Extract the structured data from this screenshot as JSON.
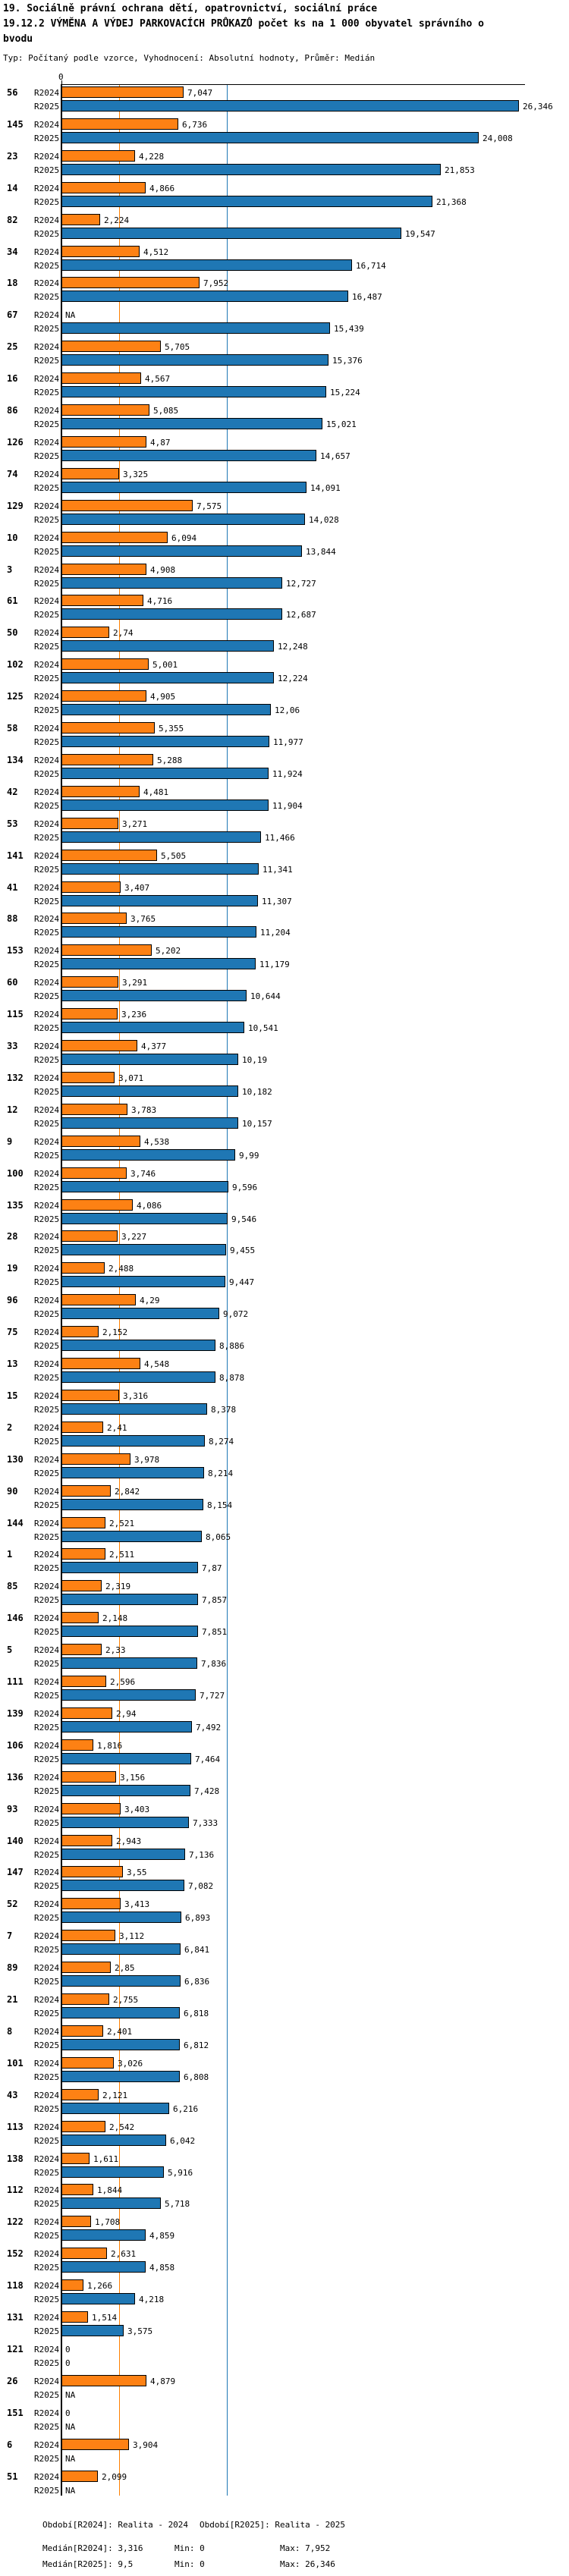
{
  "page": {
    "title_lines": [
      "19. Sociálně právní ochrana dětí, opatrovnictví, sociální práce",
      "19.12.2 VÝMĚNA A VÝDEJ PARKOVACÍCH PRŮKAZŮ počet ks na 1 000 obyvatel správního o",
      "bvodu"
    ],
    "subtitle": "Typ: Počítaný podle vzorce, Vyhodnocení: Absolutní hodnoty, Průměr: Medián"
  },
  "chart_data": {
    "type": "bar",
    "orientation": "horizontal",
    "series": [
      "R2024",
      "R2025"
    ],
    "colors": {
      "R2024": "#fd8114",
      "R2025": "#1f77b4"
    },
    "x_axis": {
      "zero_label": "0",
      "min": 0,
      "max_implied": 27,
      "grid": false
    },
    "median_lines": {
      "R2024": 3.316,
      "R2025": 9.5
    },
    "row_format": [
      "id",
      "R2024",
      "R2025"
    ],
    "rows": [
      [
        "56",
        "7,047",
        "26,346"
      ],
      [
        "145",
        "6,736",
        "24,008"
      ],
      [
        "23",
        "4,228",
        "21,853"
      ],
      [
        "14",
        "4,866",
        "21,368"
      ],
      [
        "82",
        "2,224",
        "19,547"
      ],
      [
        "34",
        "4,512",
        "16,714"
      ],
      [
        "18",
        "7,952",
        "16,487"
      ],
      [
        "67",
        "NA",
        "15,439"
      ],
      [
        "25",
        "5,705",
        "15,376"
      ],
      [
        "16",
        "4,567",
        "15,224"
      ],
      [
        "86",
        "5,085",
        "15,021"
      ],
      [
        "126",
        "4,87",
        "14,657"
      ],
      [
        "74",
        "3,325",
        "14,091"
      ],
      [
        "129",
        "7,575",
        "14,028"
      ],
      [
        "10",
        "6,094",
        "13,844"
      ],
      [
        "3",
        "4,908",
        "12,727"
      ],
      [
        "61",
        "4,716",
        "12,687"
      ],
      [
        "50",
        "2,74",
        "12,248"
      ],
      [
        "102",
        "5,001",
        "12,224"
      ],
      [
        "125",
        "4,905",
        "12,06"
      ],
      [
        "58",
        "5,355",
        "11,977"
      ],
      [
        "134",
        "5,288",
        "11,924"
      ],
      [
        "42",
        "4,481",
        "11,904"
      ],
      [
        "53",
        "3,271",
        "11,466"
      ],
      [
        "141",
        "5,505",
        "11,341"
      ],
      [
        "41",
        "3,407",
        "11,307"
      ],
      [
        "88",
        "3,765",
        "11,204"
      ],
      [
        "153",
        "5,202",
        "11,179"
      ],
      [
        "60",
        "3,291",
        "10,644"
      ],
      [
        "115",
        "3,236",
        "10,541"
      ],
      [
        "33",
        "4,377",
        "10,19"
      ],
      [
        "132",
        "3,071",
        "10,182"
      ],
      [
        "12",
        "3,783",
        "10,157"
      ],
      [
        "9",
        "4,538",
        "9,99"
      ],
      [
        "100",
        "3,746",
        "9,596"
      ],
      [
        "135",
        "4,086",
        "9,546"
      ],
      [
        "28",
        "3,227",
        "9,455"
      ],
      [
        "19",
        "2,488",
        "9,447"
      ],
      [
        "96",
        "4,29",
        "9,072"
      ],
      [
        "75",
        "2,152",
        "8,886"
      ],
      [
        "13",
        "4,548",
        "8,878"
      ],
      [
        "15",
        "3,316",
        "8,378"
      ],
      [
        "2",
        "2,41",
        "8,274"
      ],
      [
        "130",
        "3,978",
        "8,214"
      ],
      [
        "90",
        "2,842",
        "8,154"
      ],
      [
        "144",
        "2,521",
        "8,065"
      ],
      [
        "1",
        "2,511",
        "7,87"
      ],
      [
        "85",
        "2,319",
        "7,857"
      ],
      [
        "146",
        "2,148",
        "7,851"
      ],
      [
        "5",
        "2,33",
        "7,836"
      ],
      [
        "111",
        "2,596",
        "7,727"
      ],
      [
        "139",
        "2,94",
        "7,492"
      ],
      [
        "106",
        "1,816",
        "7,464"
      ],
      [
        "136",
        "3,156",
        "7,428"
      ],
      [
        "93",
        "3,403",
        "7,333"
      ],
      [
        "140",
        "2,943",
        "7,136"
      ],
      [
        "147",
        "3,55",
        "7,082"
      ],
      [
        "52",
        "3,413",
        "6,893"
      ],
      [
        "7",
        "3,112",
        "6,841"
      ],
      [
        "89",
        "2,85",
        "6,836"
      ],
      [
        "21",
        "2,755",
        "6,818"
      ],
      [
        "8",
        "2,401",
        "6,812"
      ],
      [
        "101",
        "3,026",
        "6,808"
      ],
      [
        "43",
        "2,121",
        "6,216"
      ],
      [
        "113",
        "2,542",
        "6,042"
      ],
      [
        "138",
        "1,611",
        "5,916"
      ],
      [
        "112",
        "1,844",
        "5,718"
      ],
      [
        "122",
        "1,708",
        "4,859"
      ],
      [
        "152",
        "2,631",
        "4,858"
      ],
      [
        "118",
        "1,266",
        "4,218"
      ],
      [
        "131",
        "1,514",
        "3,575"
      ],
      [
        "121",
        "0",
        "0"
      ],
      [
        "26",
        "4,879",
        "NA"
      ],
      [
        "151",
        "0",
        "NA"
      ],
      [
        "6",
        "3,904",
        "NA"
      ],
      [
        "51",
        "2,099",
        "NA"
      ]
    ]
  },
  "footer": {
    "period_r2024": "Období[R2024]: Realita - 2024",
    "period_r2025": "Období[R2025]: Realita - 2025",
    "median_r2024": "Medián[R2024]: 3,316",
    "min_r2024": "Min: 0",
    "max_r2024": "Max: 7,952",
    "median_r2025": "Medián[R2025]: 9,5",
    "min_r2025": "Min: 0",
    "max_r2025": "Max: 26,346"
  }
}
